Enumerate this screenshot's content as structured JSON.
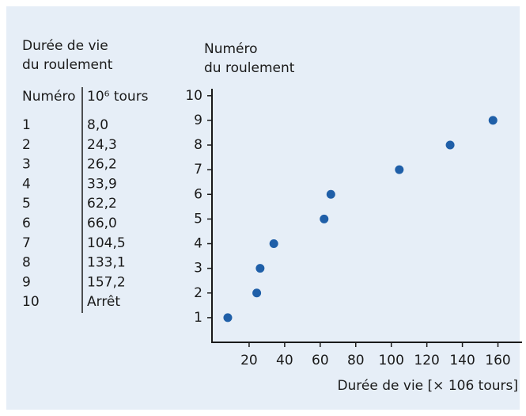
{
  "table": {
    "title": [
      "Durée de vie",
      "du roulement"
    ],
    "columns": [
      "Numéro",
      "10⁶ tours"
    ],
    "rows": [
      [
        "1",
        "8,0"
      ],
      [
        "2",
        "24,3"
      ],
      [
        "3",
        "26,2"
      ],
      [
        "4",
        "33,9"
      ],
      [
        "5",
        "62,2"
      ],
      [
        "6",
        "66,0"
      ],
      [
        "7",
        "104,5"
      ],
      [
        "8",
        "133,1"
      ],
      [
        "9",
        "157,2"
      ],
      [
        "10",
        "Arrêt"
      ]
    ]
  },
  "chart_data": {
    "type": "scatter",
    "ylabel": [
      "Numéro",
      "du roulement"
    ],
    "xlabel": "Durée de vie [× 106 tours]",
    "x": [
      8.0,
      24.3,
      26.2,
      33.9,
      62.2,
      66.0,
      104.5,
      133.1,
      157.2
    ],
    "values": [
      1,
      2,
      3,
      4,
      5,
      6,
      7,
      8,
      9
    ],
    "color": "#1f5fa8",
    "xlim": [
      0,
      170
    ],
    "ylim": [
      0,
      10
    ],
    "xticks": [
      20,
      40,
      60,
      80,
      100,
      120,
      140,
      160
    ],
    "yticks": [
      1,
      2,
      3,
      4,
      5,
      6,
      7,
      8,
      9,
      10
    ]
  }
}
